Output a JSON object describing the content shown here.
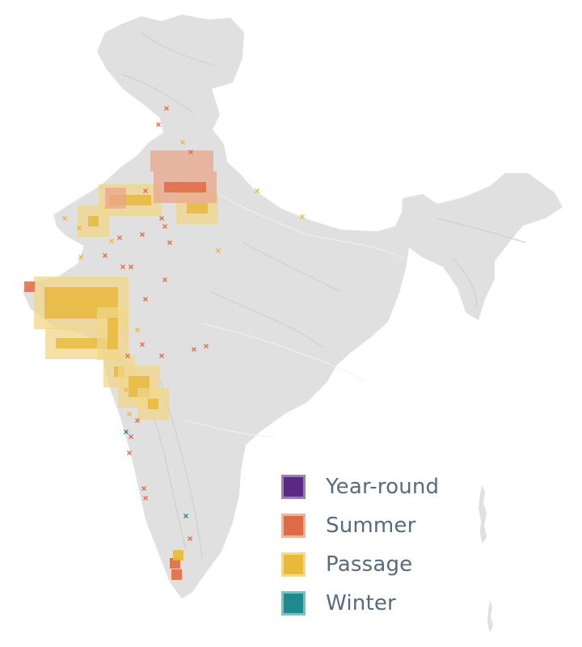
{
  "colors": {
    "land": "#e0e0e0",
    "land_shade": "#cfcfcf",
    "year_round": "#5a2a82",
    "year_round_border": "#9a7fb3",
    "summer": "#e06a45",
    "summer_light": "#eaa58a",
    "summer_border": "#f0b49d",
    "passage": "#e9b93c",
    "passage_light": "#f1d78a",
    "passage_border": "#f3d98d",
    "winter": "#1e8a8f",
    "winter_border": "#7bbfc2",
    "legend_text": "#586b7c"
  },
  "legend": [
    {
      "label": "Year-round",
      "key": "year_round"
    },
    {
      "label": "Summer",
      "key": "summer"
    },
    {
      "label": "Passage",
      "key": "passage"
    },
    {
      "label": "Winter",
      "key": "winter"
    }
  ]
}
